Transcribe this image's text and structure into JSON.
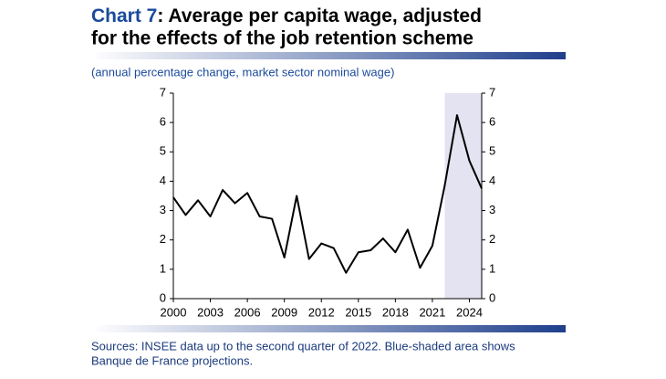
{
  "chart_data": {
    "type": "line",
    "title_label": "Chart 7",
    "title": [
      ": Average per capita wage, adjusted",
      "for the effects of the job retention scheme"
    ],
    "subtitle": "(annual percentage change, market sector nominal wage)",
    "source": [
      "Sources: INSEE data up to the second quarter of 2022. Blue-shaded area shows",
      "Banque de France projections."
    ],
    "x": [
      2000,
      2001,
      2002,
      2003,
      2004,
      2005,
      2006,
      2007,
      2008,
      2009,
      2010,
      2011,
      2012,
      2013,
      2014,
      2015,
      2016,
      2017,
      2018,
      2019,
      2020,
      2021,
      2022,
      2023,
      2024,
      2025
    ],
    "series": [
      {
        "color": "#000000",
        "values": [
          3.45,
          2.85,
          3.35,
          2.8,
          3.7,
          3.25,
          3.6,
          2.8,
          2.72,
          1.4,
          3.5,
          1.35,
          1.88,
          1.72,
          0.88,
          1.58,
          1.65,
          2.05,
          1.58,
          2.35,
          1.05,
          1.8,
          3.85,
          6.25,
          4.7,
          3.75
        ]
      }
    ],
    "xlim": [
      2000,
      2025
    ],
    "xticks": [
      2000,
      2003,
      2006,
      2009,
      2012,
      2015,
      2018,
      2021,
      2024
    ],
    "ylim": [
      0,
      7
    ],
    "yticks": [
      0,
      1,
      2,
      3,
      4,
      5,
      6,
      7
    ],
    "y2lim": [
      0,
      7
    ],
    "y2ticks": [
      0,
      1,
      2,
      3,
      4,
      5,
      6,
      7
    ],
    "shade": {
      "from": 2022,
      "to": 2025,
      "color": "#e3e3f1"
    }
  }
}
